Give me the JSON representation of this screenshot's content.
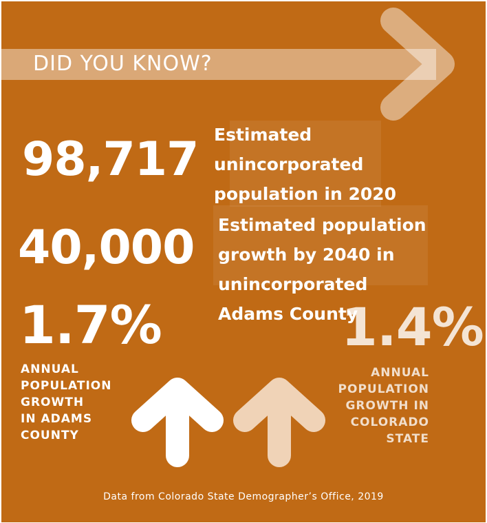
{
  "banner": {
    "title": "DID YOU KNOW?"
  },
  "stats": {
    "population_2020": {
      "value": "98,717",
      "description": "Estimated unincorporated population in 2020"
    },
    "growth_2040": {
      "value": "40,000",
      "description": "Estimated population growth by 2040 in unincorporated Adams County"
    },
    "adams_growth": {
      "value": "1.7%",
      "caption_lines": [
        "ANNUAL",
        "POPULATION",
        "GROWTH",
        "IN ADAMS",
        "COUNTY"
      ]
    },
    "colorado_growth": {
      "value": "1.4%",
      "caption_lines": [
        "ANNUAL",
        "POPULATION",
        "GROWTH IN",
        "COLORADO",
        "STATE"
      ]
    }
  },
  "source": "Data from Colorado State Demographer’s Office, 2019",
  "colors": {
    "background": "#c06a15",
    "text": "#ffffff",
    "faded_arrow": "#f0d3b7"
  },
  "icons": {
    "chevron": "chevron-right-icon",
    "adams_arrow": "arrow-up-icon",
    "colorado_arrow": "arrow-up-icon"
  }
}
